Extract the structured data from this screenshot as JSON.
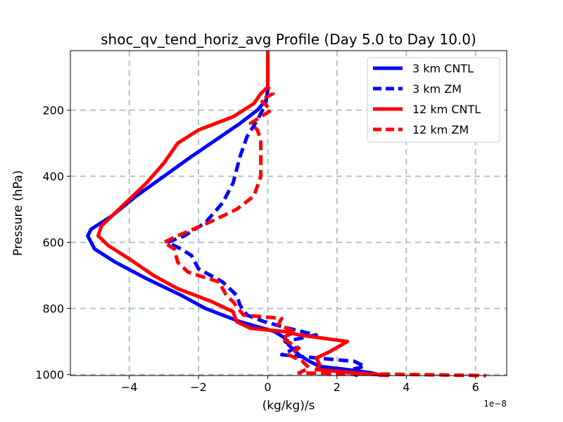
{
  "chart_data": {
    "type": "line",
    "title": "shoc_qv_tend_horiz_avg Profile (Day 5.0 to Day 10.0)",
    "xlabel": "(kg/kg)/s",
    "ylabel": "Pressure (hPa)",
    "x_scale_label": "1e−8",
    "x_scale": 1e-08,
    "xlim": [
      -5.7,
      6.9
    ],
    "ylim": [
      1003,
      20
    ],
    "y_inverted": true,
    "x_ticks": [
      -4,
      -2,
      0,
      2,
      4,
      6
    ],
    "x_tick_labels": [
      "−4",
      "−2",
      "0",
      "2",
      "4",
      "6"
    ],
    "y_ticks": [
      200,
      400,
      600,
      800,
      1000
    ],
    "y_tick_labels": [
      "200",
      "400",
      "600",
      "800",
      "1000"
    ],
    "grid": true,
    "legend_position": "top-right",
    "series": [
      {
        "name": "3 km CNTL",
        "color": "#0000ff",
        "dash": "solid",
        "points": [
          [
            0,
            20
          ],
          [
            0,
            100
          ],
          [
            0,
            140
          ],
          [
            -0.05,
            170
          ],
          [
            -0.3,
            200
          ],
          [
            -0.8,
            240
          ],
          [
            -1.5,
            290
          ],
          [
            -2.2,
            340
          ],
          [
            -3.0,
            400
          ],
          [
            -3.8,
            460
          ],
          [
            -4.5,
            520
          ],
          [
            -5.1,
            560
          ],
          [
            -5.2,
            580
          ],
          [
            -5.0,
            620
          ],
          [
            -4.4,
            660
          ],
          [
            -3.5,
            710
          ],
          [
            -2.5,
            760
          ],
          [
            -1.8,
            800
          ],
          [
            -0.8,
            840
          ],
          [
            0.2,
            870
          ],
          [
            0.5,
            890
          ],
          [
            0.6,
            910
          ],
          [
            0.9,
            940
          ],
          [
            1.2,
            960
          ],
          [
            1.5,
            975
          ],
          [
            2.3,
            985
          ],
          [
            3.0,
            995
          ],
          [
            3.3,
            1003
          ]
        ]
      },
      {
        "name": "3 km ZM",
        "color": "#0000ff",
        "dash": "dashed",
        "points": [
          [
            0,
            20
          ],
          [
            0,
            100
          ],
          [
            0,
            150
          ],
          [
            -0.1,
            190
          ],
          [
            -0.3,
            230
          ],
          [
            -0.6,
            280
          ],
          [
            -0.8,
            340
          ],
          [
            -1.0,
            420
          ],
          [
            -1.3,
            480
          ],
          [
            -1.8,
            540
          ],
          [
            -2.4,
            580
          ],
          [
            -2.9,
            600
          ],
          [
            -2.5,
            620
          ],
          [
            -2.2,
            640
          ],
          [
            -2.0,
            680
          ],
          [
            -1.3,
            720
          ],
          [
            -0.9,
            760
          ],
          [
            -0.8,
            790
          ],
          [
            -0.6,
            820
          ],
          [
            -0.1,
            840
          ],
          [
            0.6,
            860
          ],
          [
            1.4,
            880
          ],
          [
            0.5,
            900
          ],
          [
            0.8,
            920
          ],
          [
            0.4,
            940
          ],
          [
            2.5,
            960
          ],
          [
            2.8,
            975
          ],
          [
            2.2,
            990
          ],
          [
            2.6,
            1003
          ]
        ]
      },
      {
        "name": "12 km CNTL",
        "color": "#ff0000",
        "dash": "solid",
        "points": [
          [
            0,
            20
          ],
          [
            0,
            100
          ],
          [
            0,
            130
          ],
          [
            -0.2,
            150
          ],
          [
            -0.4,
            180
          ],
          [
            -1.0,
            220
          ],
          [
            -2.0,
            260
          ],
          [
            -2.6,
            300
          ],
          [
            -3.0,
            360
          ],
          [
            -3.5,
            420
          ],
          [
            -4.2,
            490
          ],
          [
            -4.8,
            550
          ],
          [
            -4.9,
            580
          ],
          [
            -4.6,
            610
          ],
          [
            -4.0,
            650
          ],
          [
            -3.3,
            700
          ],
          [
            -2.6,
            740
          ],
          [
            -1.6,
            780
          ],
          [
            -1.0,
            810
          ],
          [
            -0.9,
            840
          ],
          [
            -0.5,
            860
          ],
          [
            0.5,
            870
          ],
          [
            0.9,
            880
          ],
          [
            2.3,
            900
          ],
          [
            1.8,
            930
          ],
          [
            1.4,
            950
          ],
          [
            1.5,
            970
          ],
          [
            1.4,
            985
          ],
          [
            3.5,
            1003
          ]
        ]
      },
      {
        "name": "12 km ZM",
        "color": "#ff0000",
        "dash": "dashed",
        "points": [
          [
            0,
            20
          ],
          [
            0,
            100
          ],
          [
            0,
            130
          ],
          [
            0.15,
            150
          ],
          [
            -0.2,
            170
          ],
          [
            0.1,
            200
          ],
          [
            -0.5,
            240
          ],
          [
            -0.3,
            260
          ],
          [
            -0.2,
            290
          ],
          [
            -0.2,
            330
          ],
          [
            -0.2,
            400
          ],
          [
            -0.4,
            460
          ],
          [
            -0.9,
            500
          ],
          [
            -1.7,
            540
          ],
          [
            -2.6,
            580
          ],
          [
            -3.0,
            600
          ],
          [
            -2.7,
            620
          ],
          [
            -2.6,
            660
          ],
          [
            -2.3,
            690
          ],
          [
            -1.4,
            720
          ],
          [
            -1.2,
            760
          ],
          [
            -1.0,
            780
          ],
          [
            -0.7,
            820
          ],
          [
            0.4,
            830
          ],
          [
            0.3,
            850
          ],
          [
            0.8,
            870
          ],
          [
            0.4,
            890
          ],
          [
            0.9,
            920
          ],
          [
            0.6,
            940
          ],
          [
            1.0,
            960
          ],
          [
            1.2,
            980
          ],
          [
            0.9,
            995
          ],
          [
            6.3,
            1003
          ]
        ]
      }
    ]
  }
}
